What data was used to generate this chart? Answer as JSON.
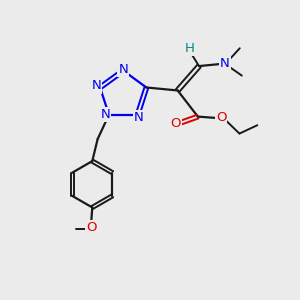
{
  "bg_color": "#ebebeb",
  "bond_color": "#1a1a1a",
  "N_color": "#0000ee",
  "O_color": "#dd0000",
  "H_color": "#008888",
  "figsize": [
    3.0,
    3.0
  ],
  "dpi": 100,
  "xlim": [
    0,
    10
  ],
  "ylim": [
    0,
    10
  ]
}
